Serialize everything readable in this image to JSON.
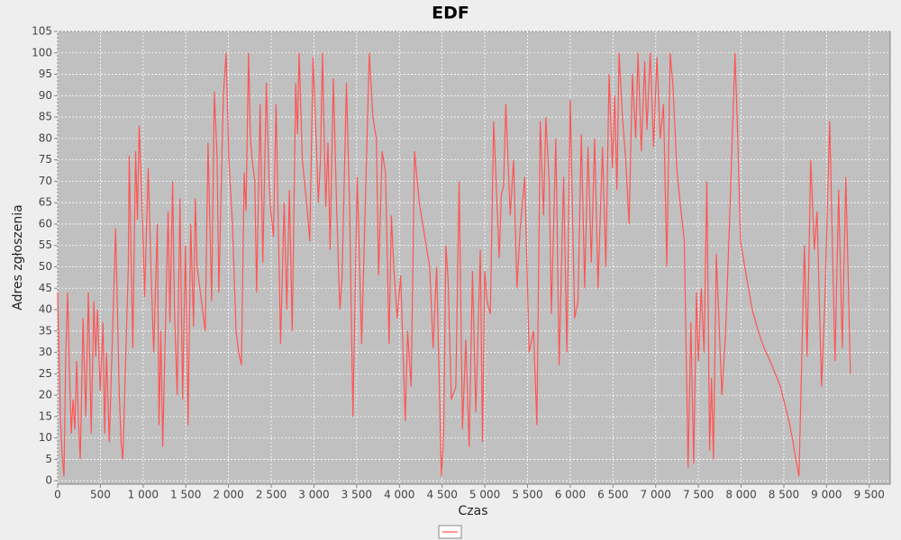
{
  "chart_data": {
    "type": "line",
    "title": "EDF",
    "xlabel": "Czas",
    "ylabel": "Adres zgłoszenia",
    "color": "#ff5555",
    "grid": true,
    "xlim": [
      0,
      9745
    ],
    "ylim": [
      -0.8,
      105
    ],
    "xticks": [
      0,
      500,
      {
        "value": 1000,
        "label": "1 000"
      },
      {
        "value": 1500,
        "label": "1 500"
      },
      {
        "value": 2000,
        "label": "2 000"
      },
      {
        "value": 2500,
        "label": "2 500"
      },
      {
        "value": 3000,
        "label": "3 000"
      },
      {
        "value": 3500,
        "label": "3 500"
      },
      {
        "value": 4000,
        "label": "4 000"
      },
      {
        "value": 4500,
        "label": "4 500"
      },
      {
        "value": 5000,
        "label": "5 000"
      },
      {
        "value": 5500,
        "label": "5 500"
      },
      {
        "value": 6000,
        "label": "6 000"
      },
      {
        "value": 6500,
        "label": "6 500"
      },
      {
        "value": 7000,
        "label": "7 000"
      },
      {
        "value": 7500,
        "label": "7 500"
      },
      {
        "value": 8000,
        "label": "8 000"
      },
      {
        "value": 8500,
        "label": "8 500"
      },
      {
        "value": 9000,
        "label": "9 000"
      },
      {
        "value": 9500,
        "label": "9 500"
      }
    ],
    "yticks": [
      0,
      5,
      10,
      15,
      20,
      25,
      30,
      35,
      40,
      45,
      50,
      55,
      60,
      65,
      70,
      75,
      80,
      85,
      90,
      95,
      100,
      105
    ],
    "x": [
      0,
      32,
      53,
      74,
      95,
      117,
      138,
      159,
      180,
      201,
      223,
      244,
      265,
      297,
      329,
      360,
      392,
      424,
      445,
      466,
      498,
      530,
      551,
      572,
      604,
      636,
      678,
      721,
      742,
      763,
      827,
      837,
      880,
      912,
      933,
      954,
      996,
      1018,
      1060,
      1092,
      1124,
      1166,
      1187,
      1208,
      1230,
      1293,
      1314,
      1346,
      1367,
      1399,
      1431,
      1463,
      1495,
      1526,
      1558,
      1590,
      1611,
      1632,
      1664,
      1696,
      1728,
      1760,
      1802,
      1834,
      1866,
      1887,
      1908,
      1940,
      1972,
      2004,
      2046,
      2088,
      2119,
      2151,
      2183,
      2204,
      2235,
      2256,
      2277,
      2308,
      2329,
      2370,
      2401,
      2443,
      2474,
      2495,
      2526,
      2557,
      2609,
      2651,
      2682,
      2713,
      2745,
      2786,
      2807,
      2826,
      2864,
      2914,
      2951,
      2989,
      3026,
      3051,
      3076,
      3100,
      3138,
      3164,
      3189,
      3227,
      3265,
      3303,
      3329,
      3380,
      3418,
      3456,
      3507,
      3558,
      3608,
      3648,
      3689,
      3730,
      3757,
      3798,
      3838,
      3879,
      3906,
      3934,
      3974,
      4015,
      4069,
      4096,
      4137,
      4178,
      4232,
      4273,
      4314,
      4355,
      4395,
      4436,
      4492,
      4518,
      4544,
      4570,
      4609,
      4661,
      4700,
      4739,
      4778,
      4817,
      4856,
      4895,
      4947,
      4973,
      4999,
      5025,
      5064,
      5103,
      5142,
      5168,
      5194,
      5220,
      5246,
      5298,
      5337,
      5376,
      5415,
      5467,
      5519,
      5571,
      5610,
      5649,
      5688,
      5714,
      5753,
      5779,
      5831,
      5870,
      5922,
      5961,
      6000,
      6052,
      6091,
      6130,
      6169,
      6208,
      6247,
      6286,
      6325,
      6377,
      6416,
      6455,
      6494,
      6520,
      6546,
      6572,
      6611,
      6650,
      6689,
      6728,
      6767,
      6793,
      6832,
      6871,
      6897,
      6936,
      6975,
      7014,
      7053,
      7092,
      7131,
      7170,
      7203,
      7247,
      7291,
      7335,
      7379,
      7412,
      7445,
      7478,
      7500,
      7533,
      7566,
      7599,
      7632,
      7654,
      7676,
      7709,
      7775,
      7819,
      7863,
      7929,
      7960,
      7993,
      8060,
      8130,
      8200,
      8270,
      8340,
      8400,
      8460,
      8510,
      8560,
      8600,
      8640,
      8678,
      8741,
      8773,
      8815,
      8857,
      8889,
      8941,
      8983,
      9036,
      9100,
      9142,
      9184,
      9226,
      9279
    ],
    "values": [
      44,
      15,
      6,
      1,
      30,
      44,
      25,
      11,
      19,
      12,
      28,
      14,
      5,
      38,
      15,
      44,
      11,
      42,
      29,
      40,
      21,
      37,
      11,
      30,
      9,
      30,
      59,
      20,
      9,
      5,
      50,
      76,
      31,
      77,
      61,
      83,
      60,
      43,
      73,
      50,
      30,
      60,
      13,
      35,
      8,
      63,
      37,
      70,
      40,
      20,
      66,
      19,
      55,
      13,
      60,
      36,
      66,
      50,
      45,
      40,
      35,
      79,
      42,
      91,
      76,
      44,
      63,
      90,
      100,
      75,
      60,
      35,
      30,
      27,
      72,
      63,
      100,
      80,
      75,
      70,
      44,
      88,
      51,
      93,
      70,
      63,
      57,
      88,
      32,
      65,
      40,
      68,
      35,
      93,
      81,
      100,
      75,
      65,
      56,
      99,
      80,
      65,
      75,
      100,
      64,
      79,
      54,
      94,
      64,
      40,
      47,
      93,
      63,
      15,
      71,
      32,
      70,
      100,
      85,
      80,
      48,
      77,
      72,
      32,
      62,
      50,
      38,
      48,
      14,
      35,
      22,
      77,
      65,
      60,
      55,
      50,
      31,
      50,
      1,
      11,
      55,
      47,
      19,
      22,
      70,
      12,
      33,
      8,
      49,
      16,
      54,
      9,
      49,
      42,
      39,
      84,
      65,
      52,
      67,
      69,
      88,
      62,
      75,
      45,
      59,
      71,
      30,
      35,
      13,
      84,
      62,
      85,
      70,
      39,
      80,
      27,
      71,
      30,
      89,
      38,
      42,
      81,
      45,
      78,
      51,
      80,
      45,
      78,
      50,
      95,
      73,
      90,
      68,
      100,
      85,
      75,
      60,
      95,
      80,
      100,
      77,
      98,
      82,
      100,
      78,
      99,
      80,
      88,
      50,
      100,
      92,
      73,
      64,
      56,
      3,
      37,
      4,
      44,
      28,
      45,
      30,
      70,
      7,
      24,
      5,
      53,
      20,
      35,
      60,
      100,
      80,
      56,
      48,
      40,
      35,
      31,
      28,
      25,
      22,
      18,
      14,
      10,
      5,
      1,
      55,
      29,
      75,
      54,
      63,
      22,
      43,
      84,
      28,
      68,
      31,
      71,
      25
    ]
  }
}
